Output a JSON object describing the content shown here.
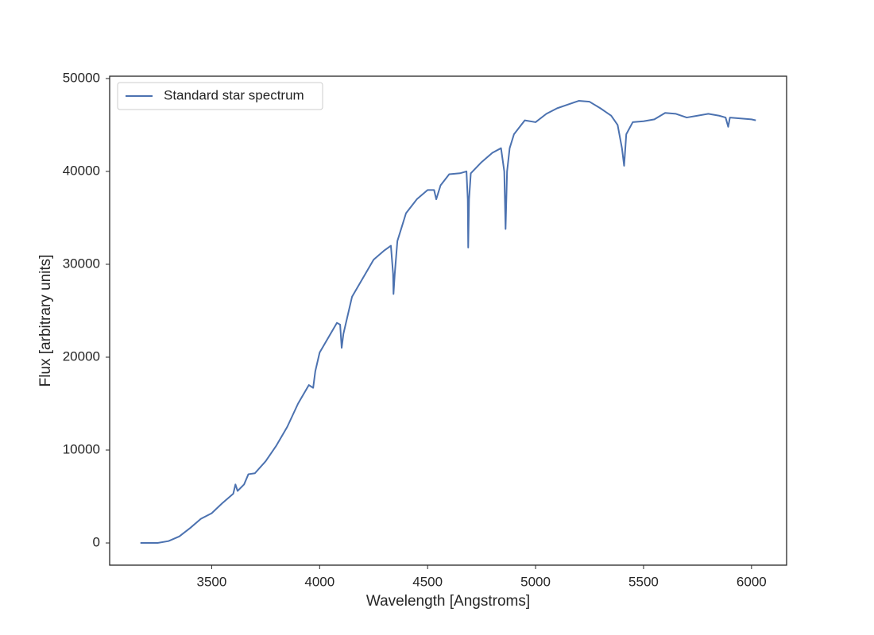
{
  "chart_data": {
    "type": "line",
    "xlabel": "Wavelength [Angstroms]",
    "ylabel": "Flux [arbitrary units]",
    "x": [
      3170,
      3250,
      3300,
      3350,
      3400,
      3450,
      3500,
      3550,
      3600,
      3610,
      3620,
      3650,
      3670,
      3700,
      3750,
      3800,
      3850,
      3900,
      3950,
      3970,
      3980,
      4000,
      4050,
      4080,
      4095,
      4102,
      4110,
      4150,
      4200,
      4250,
      4300,
      4330,
      4340,
      4342,
      4348,
      4360,
      4400,
      4450,
      4500,
      4530,
      4540,
      4560,
      4600,
      4650,
      4680,
      4686,
      4688,
      4692,
      4700,
      4750,
      4800,
      4840,
      4855,
      4861,
      4868,
      4880,
      4900,
      4950,
      5000,
      5050,
      5100,
      5150,
      5200,
      5250,
      5300,
      5350,
      5380,
      5400,
      5410,
      5420,
      5450,
      5500,
      5550,
      5600,
      5650,
      5700,
      5750,
      5800,
      5850,
      5880,
      5892,
      5900,
      5950,
      6000,
      6020
    ],
    "series": [
      {
        "name": "Standard star spectrum",
        "color": "#4c72b0",
        "values": [
          0,
          0,
          200,
          700,
          1600,
          2600,
          3200,
          4300,
          5300,
          6300,
          5600,
          6300,
          7400,
          7500,
          8800,
          10500,
          12500,
          15000,
          17000,
          16700,
          18500,
          20500,
          22500,
          23700,
          23500,
          21000,
          22500,
          26500,
          28500,
          30500,
          31500,
          32000,
          29000,
          26800,
          29000,
          32500,
          35500,
          37000,
          38000,
          38000,
          37000,
          38500,
          39700,
          39800,
          40000,
          37000,
          31800,
          37000,
          39800,
          41000,
          42000,
          42500,
          40000,
          33800,
          40000,
          42500,
          44000,
          45500,
          45300,
          46200,
          46800,
          47200,
          47600,
          47500,
          46800,
          46000,
          45000,
          42500,
          40600,
          44000,
          45300,
          45400,
          45600,
          46300,
          46200,
          45800,
          46000,
          46200,
          46000,
          45800,
          44800,
          45800,
          45700,
          45600,
          45500
        ]
      }
    ],
    "xlim": [
      3027.5,
      6162.5
    ],
    "ylim": [
      -2390,
      50250
    ],
    "xticks": [
      3500,
      4000,
      4500,
      5000,
      5500,
      6000
    ],
    "yticks": [
      0,
      10000,
      20000,
      30000,
      40000,
      50000
    ],
    "grid": false,
    "legend": "upper left"
  }
}
